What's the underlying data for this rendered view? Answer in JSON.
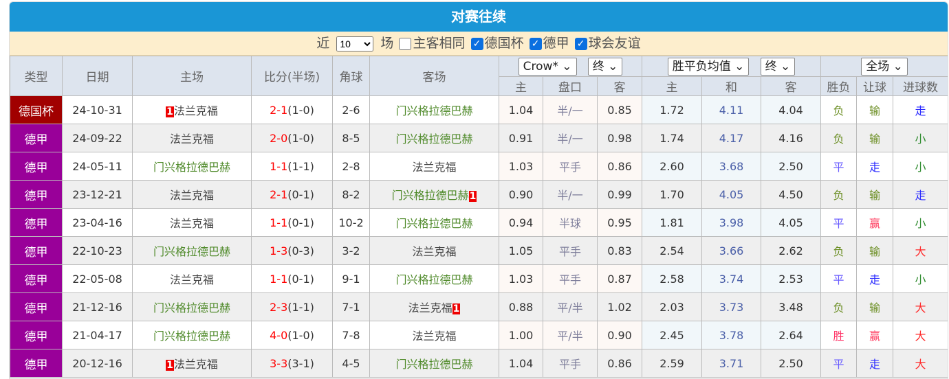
{
  "title": "对赛往续",
  "filter": {
    "near": "近",
    "count": "10",
    "games": "场",
    "same_label": "主客相同",
    "same_checked": false,
    "leagues": [
      {
        "label": "德国杯",
        "checked": true
      },
      {
        "label": "德甲",
        "checked": true
      },
      {
        "label": "球会友谊",
        "checked": true
      }
    ]
  },
  "header": {
    "type": "类型",
    "date": "日期",
    "home": "主场",
    "score": "比分(半场)",
    "corner": "角球",
    "away": "客场",
    "handicap_company": "Crow*",
    "handicap_phase": "终",
    "odds_company": "胜平负均值",
    "odds_phase": "终",
    "range": "全场",
    "sub": [
      "主",
      "盘口",
      "客",
      "主",
      "和",
      "客",
      "胜负",
      "让球",
      "进球数"
    ]
  },
  "colors": {
    "德国杯": "#a10000",
    "德甲": "#990099",
    "负": "#6b8e23",
    "胜": "#ff3366",
    "平": "#6a5cff",
    "输": "#6b8e23",
    "赢": "#ff4466",
    "走": "#2a2aff",
    "小": "#2e8b2e",
    "大": "#ff2a2a"
  },
  "rows": [
    {
      "type": "德国杯",
      "date": "24-10-31",
      "home": "法兰克福",
      "home_card": "1",
      "ft": "2-1",
      "ht": "(1-0)",
      "corner": "2-6",
      "away": "门兴格拉德巴赫",
      "away_card": "",
      "h": "1.04",
      "line": "半/一",
      "a": "0.85",
      "w": "1.72",
      "d": "4.11",
      "l": "4.04",
      "res": "负",
      "ah": "输",
      "ou": "走"
    },
    {
      "type": "德甲",
      "date": "24-09-22",
      "home": "法兰克福",
      "home_card": "",
      "ft": "2-0",
      "ht": "(1-0)",
      "corner": "8-5",
      "away": "门兴格拉德巴赫",
      "away_card": "",
      "h": "0.91",
      "line": "半/一",
      "a": "0.98",
      "w": "1.74",
      "d": "4.17",
      "l": "4.16",
      "res": "负",
      "ah": "输",
      "ou": "小"
    },
    {
      "type": "德甲",
      "date": "24-05-11",
      "home": "门兴格拉德巴赫",
      "home_card": "",
      "ft": "1-1",
      "ht": "(1-1)",
      "corner": "2-8",
      "away": "法兰克福",
      "away_card": "",
      "h": "1.03",
      "line": "平手",
      "a": "0.86",
      "w": "2.60",
      "d": "3.68",
      "l": "2.50",
      "res": "平",
      "ah": "走",
      "ou": "小"
    },
    {
      "type": "德甲",
      "date": "23-12-21",
      "home": "法兰克福",
      "home_card": "",
      "ft": "2-1",
      "ht": "(0-1)",
      "corner": "8-2",
      "away": "门兴格拉德巴赫",
      "away_card": "1",
      "h": "0.90",
      "line": "半/一",
      "a": "0.99",
      "w": "1.70",
      "d": "4.05",
      "l": "4.50",
      "res": "负",
      "ah": "输",
      "ou": "走"
    },
    {
      "type": "德甲",
      "date": "23-04-16",
      "home": "法兰克福",
      "home_card": "",
      "ft": "1-1",
      "ht": "(0-1)",
      "corner": "10-2",
      "away": "门兴格拉德巴赫",
      "away_card": "",
      "h": "0.94",
      "line": "半球",
      "a": "0.95",
      "w": "1.81",
      "d": "3.98",
      "l": "4.05",
      "res": "平",
      "ah": "赢",
      "ou": "小"
    },
    {
      "type": "德甲",
      "date": "22-10-23",
      "home": "门兴格拉德巴赫",
      "home_card": "",
      "ft": "1-3",
      "ht": "(0-3)",
      "corner": "3-2",
      "away": "法兰克福",
      "away_card": "",
      "h": "1.05",
      "line": "平手",
      "a": "0.83",
      "w": "2.54",
      "d": "3.66",
      "l": "2.62",
      "res": "负",
      "ah": "输",
      "ou": "大"
    },
    {
      "type": "德甲",
      "date": "22-05-08",
      "home": "法兰克福",
      "home_card": "",
      "ft": "1-1",
      "ht": "(0-1)",
      "corner": "9-1",
      "away": "门兴格拉德巴赫",
      "away_card": "",
      "h": "1.03",
      "line": "平手",
      "a": "0.87",
      "w": "2.58",
      "d": "3.74",
      "l": "2.53",
      "res": "平",
      "ah": "走",
      "ou": "小"
    },
    {
      "type": "德甲",
      "date": "21-12-16",
      "home": "门兴格拉德巴赫",
      "home_card": "",
      "ft": "2-3",
      "ht": "(1-1)",
      "corner": "7-1",
      "away": "法兰克福",
      "away_card": "1",
      "h": "0.88",
      "line": "平/半",
      "a": "1.02",
      "w": "2.03",
      "d": "3.73",
      "l": "3.48",
      "res": "负",
      "ah": "输",
      "ou": "大"
    },
    {
      "type": "德甲",
      "date": "21-04-17",
      "home": "门兴格拉德巴赫",
      "home_card": "",
      "ft": "4-0",
      "ht": "(1-0)",
      "corner": "7-8",
      "away": "法兰克福",
      "away_card": "",
      "h": "1.00",
      "line": "平/半",
      "a": "0.90",
      "w": "2.45",
      "d": "3.78",
      "l": "2.64",
      "res": "胜",
      "ah": "赢",
      "ou": "大"
    },
    {
      "type": "德甲",
      "date": "20-12-16",
      "home": "法兰克福",
      "home_card": "1",
      "ft": "3-3",
      "ht": "(3-1)",
      "corner": "4-5",
      "away": "门兴格拉德巴赫",
      "away_card": "",
      "h": "1.04",
      "line": "平手",
      "a": "0.86",
      "w": "2.59",
      "d": "3.71",
      "l": "2.50",
      "res": "平",
      "ah": "走",
      "ou": "大"
    }
  ]
}
